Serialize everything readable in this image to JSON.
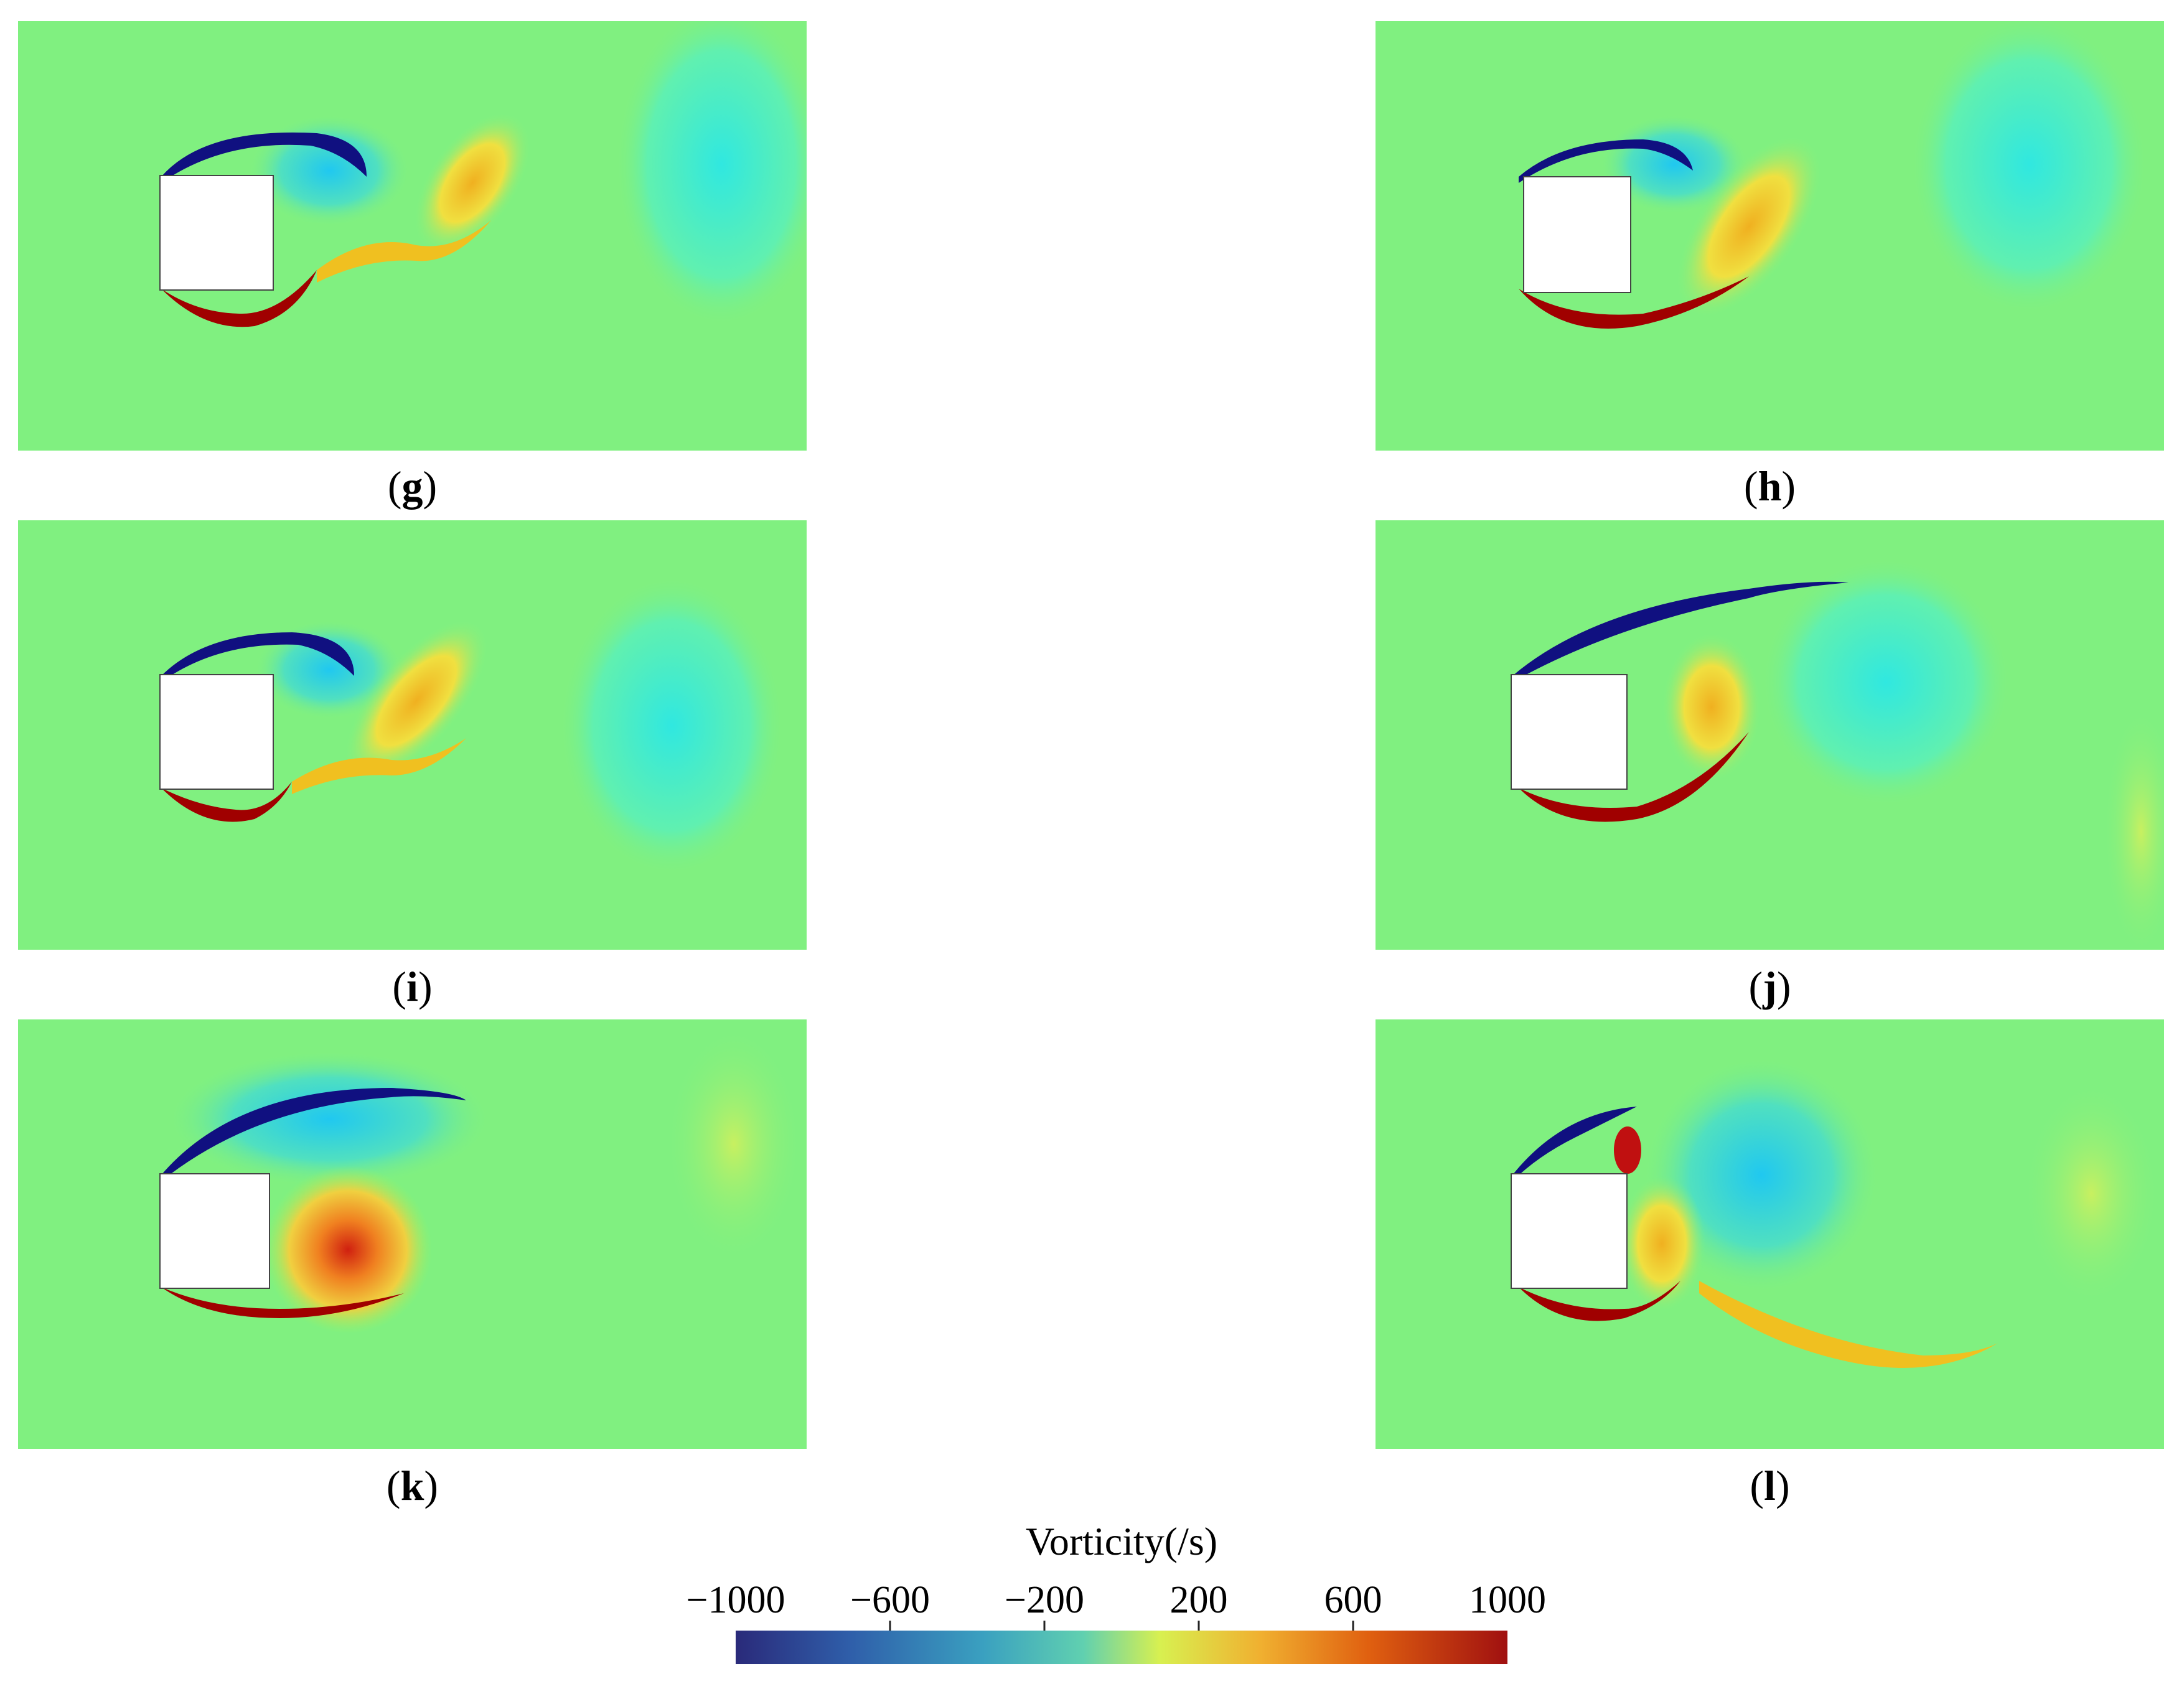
{
  "panels": [
    {
      "id": "g",
      "label": "g"
    },
    {
      "id": "h",
      "label": "h"
    },
    {
      "id": "i",
      "label": "i"
    },
    {
      "id": "j",
      "label": "j"
    },
    {
      "id": "k",
      "label": "k"
    },
    {
      "id": "l",
      "label": "l"
    }
  ],
  "colorbar": {
    "title": "Vorticity(/s)",
    "ticks": [
      "−1000",
      "−600",
      "−200",
      "200",
      "600",
      "1000"
    ],
    "range": [
      -1000,
      1000
    ],
    "colors": [
      "#2a2a7a",
      "#2f6fb8",
      "#3aa8c0",
      "#7ee8a0",
      "#e8f040",
      "#f5a020",
      "#e05010",
      "#a01010"
    ]
  },
  "colors": {
    "background_field": "#80f080",
    "negative_vortex": "#20c8f0",
    "positive_vortex": "#f0c020",
    "strong_negative": "#101080",
    "strong_positive": "#a00000"
  }
}
